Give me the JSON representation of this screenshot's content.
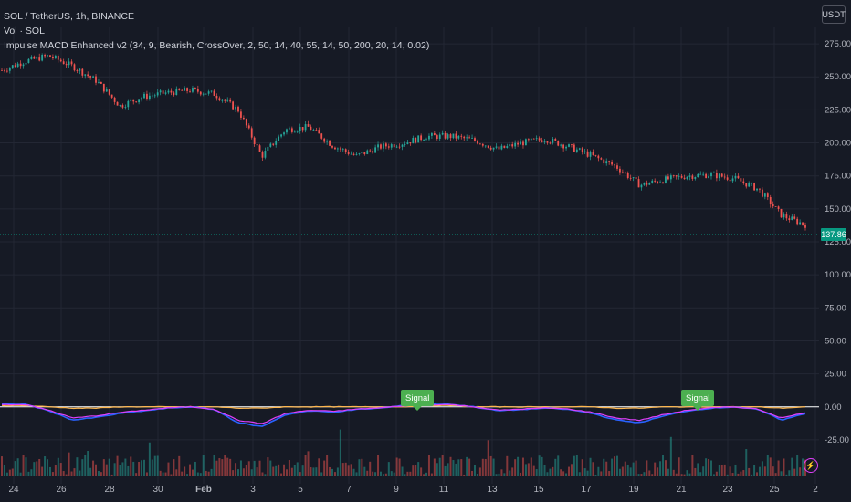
{
  "header": {
    "symbol_line": "SOL / TetherUS, 1h, BINANCE",
    "vol_line": "Vol · SOL",
    "indicator_line": "Impulse MACD Enhanced v2 (34, 9, Bearish, CrossOver, 2, 50, 14, 40, 55, 14, 50, 200, 20, 14, 0.02)"
  },
  "currency_button": "USDT",
  "last_price_label": "137.86",
  "signals": [
    "Signal",
    "Signal"
  ],
  "colors": {
    "background": "#161a25",
    "grid": "#232734",
    "up_candle": "#26a69a",
    "down_candle": "#ef5350",
    "macd_blue": "#2962ff",
    "macd_magenta": "#e040fb",
    "signal_orange": "#ffb74d",
    "zero_line": "#ffffff",
    "signal_label": "#4caf50",
    "last_price": "#089981"
  },
  "icons": {
    "alert": "lightning-icon"
  },
  "chart_data": {
    "type": "line",
    "price_axis_ticks": [
      "275.00",
      "250.00",
      "225.00",
      "200.00",
      "175.00",
      "150.00",
      "125.00",
      "100.00",
      "75.00",
      "50.00",
      "25.00",
      "0.00",
      "-25.00"
    ],
    "x_tick_labels": [
      "24",
      "26",
      "28",
      "30",
      "Feb",
      "3",
      "5",
      "7",
      "9",
      "11",
      "13",
      "15",
      "17",
      "19",
      "21",
      "23",
      "25",
      "2"
    ],
    "price_series": {
      "name": "SOL / TetherUS",
      "x": [
        "Jan 23",
        "Jan 24",
        "Jan 25",
        "Jan 26",
        "Jan 27",
        "Jan 28",
        "Jan 29",
        "Jan 30",
        "Jan 31",
        "Feb 1",
        "Feb 2",
        "Feb 3",
        "Feb 4",
        "Feb 5",
        "Feb 6",
        "Feb 7",
        "Feb 8",
        "Feb 9",
        "Feb 10",
        "Feb 11",
        "Feb 12",
        "Feb 13",
        "Feb 14",
        "Feb 15",
        "Feb 16",
        "Feb 17",
        "Feb 18",
        "Feb 19",
        "Feb 20",
        "Feb 21",
        "Feb 22",
        "Feb 23",
        "Feb 24",
        "Feb 25",
        "Feb 26"
      ],
      "y": [
        255,
        262,
        266,
        258,
        247,
        228,
        235,
        238,
        240,
        237,
        225,
        190,
        210,
        212,
        198,
        190,
        197,
        200,
        205,
        205,
        202,
        195,
        200,
        203,
        197,
        190,
        182,
        168,
        172,
        175,
        176,
        173,
        165,
        145,
        138
      ]
    },
    "indicator": {
      "macd": [
        2,
        2,
        -3,
        -10,
        -8,
        -5,
        -3,
        -1,
        0,
        -2,
        -12,
        -15,
        -6,
        -3,
        -4,
        -2,
        -1,
        1,
        2,
        2,
        0,
        -3,
        -2,
        -1,
        -2,
        -5,
        -10,
        -12,
        -7,
        -3,
        -1,
        0,
        -2,
        -10,
        -5
      ],
      "signal": [
        1,
        1,
        0,
        -1,
        -1,
        0,
        0,
        0,
        0,
        0,
        -1,
        -1,
        0,
        0,
        0,
        0,
        0,
        0,
        1,
        1,
        0,
        0,
        0,
        0,
        0,
        0,
        -1,
        -1,
        0,
        0,
        0,
        0,
        0,
        -1,
        0
      ],
      "signal_markers_at": [
        "Feb 10",
        "Feb 22"
      ]
    },
    "volume_range": [
      0,
      100
    ],
    "grid": true
  }
}
